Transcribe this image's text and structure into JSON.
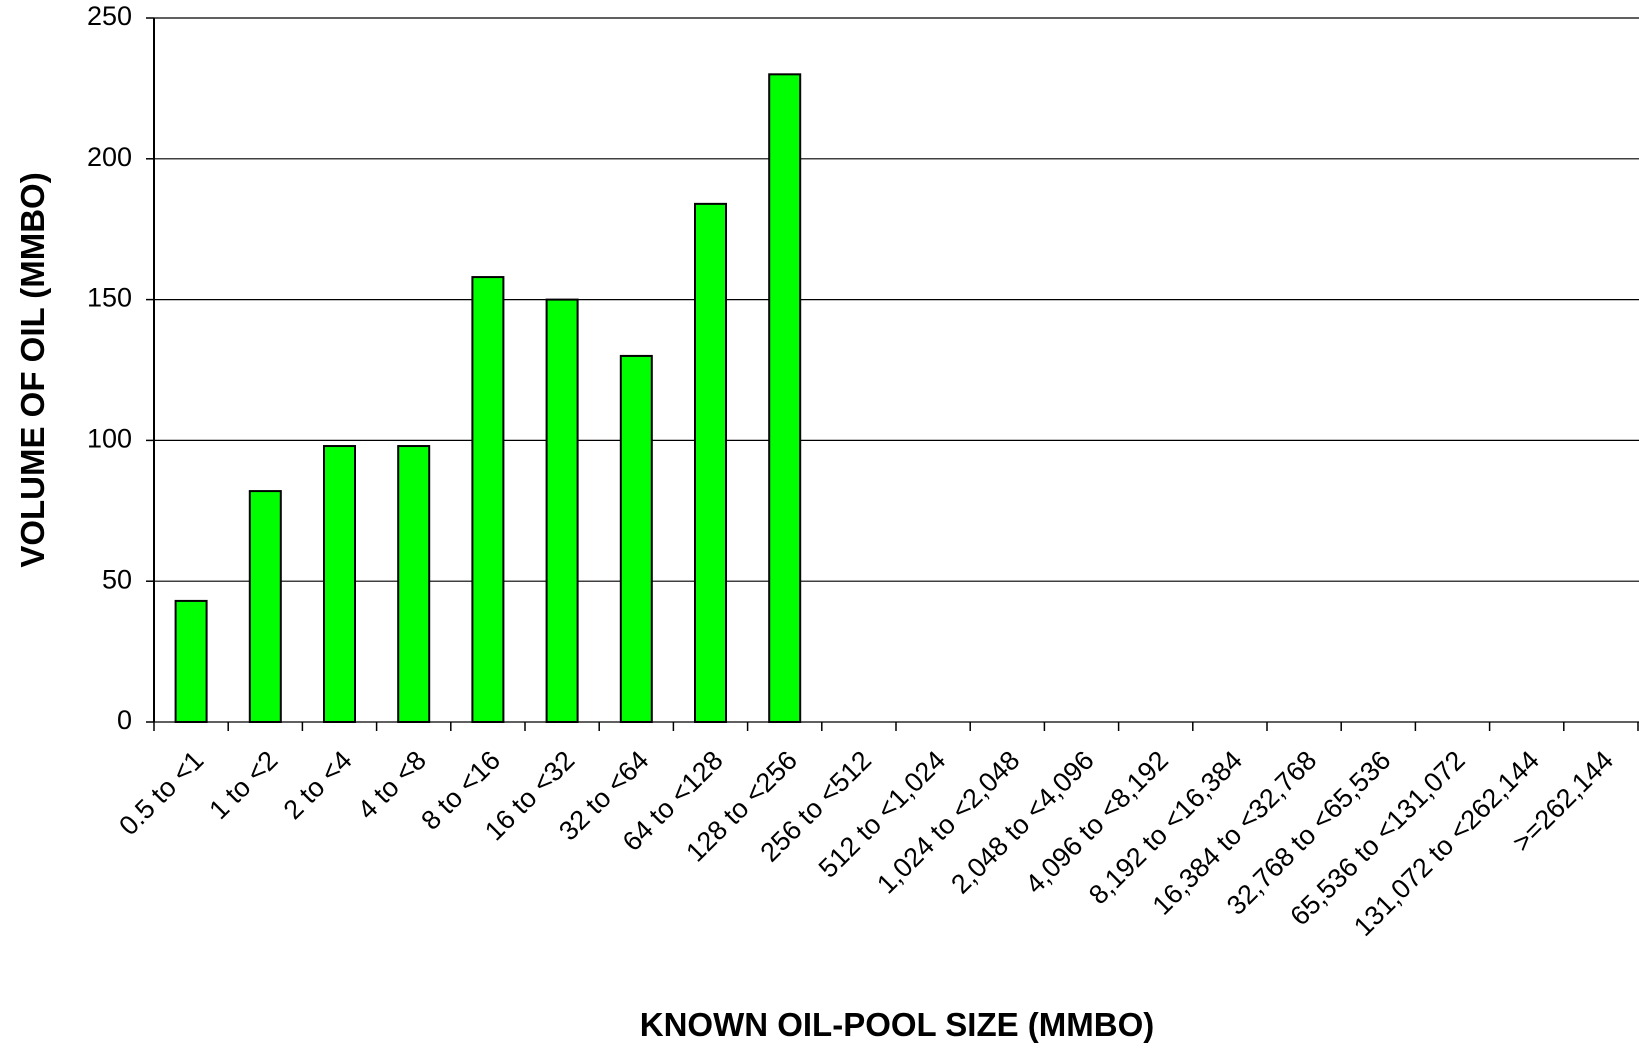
{
  "chart_data": {
    "type": "bar",
    "x_label": "KNOWN OIL-POOL SIZE (MMBO)",
    "y_label": "VOLUME OF OIL (MMBO)",
    "categories": [
      "0.5 to <1",
      "1 to <2",
      "2 to <4",
      "4 to <8",
      "8 to <16",
      "16 to <32",
      "32 to <64",
      "64 to <128",
      "128 to <256",
      "256 to <512",
      "512 to <1,024",
      "1,024 to <2,048",
      "2,048 to <4,096",
      "4,096 to <8,192",
      "8,192 to <16,384",
      "16,384 to <32,768",
      "32,768 to <65,536",
      "65,536 to <131,072",
      "131,072 to <262,144",
      ">=262,144"
    ],
    "values": [
      43,
      82,
      98,
      98,
      158,
      150,
      130,
      184,
      230,
      0,
      0,
      0,
      0,
      0,
      0,
      0,
      0,
      0,
      0,
      0
    ],
    "color": "#00ff00",
    "ylim": [
      0,
      250
    ],
    "yticks": [
      0,
      50,
      100,
      150,
      200,
      250
    ],
    "grid": true
  }
}
